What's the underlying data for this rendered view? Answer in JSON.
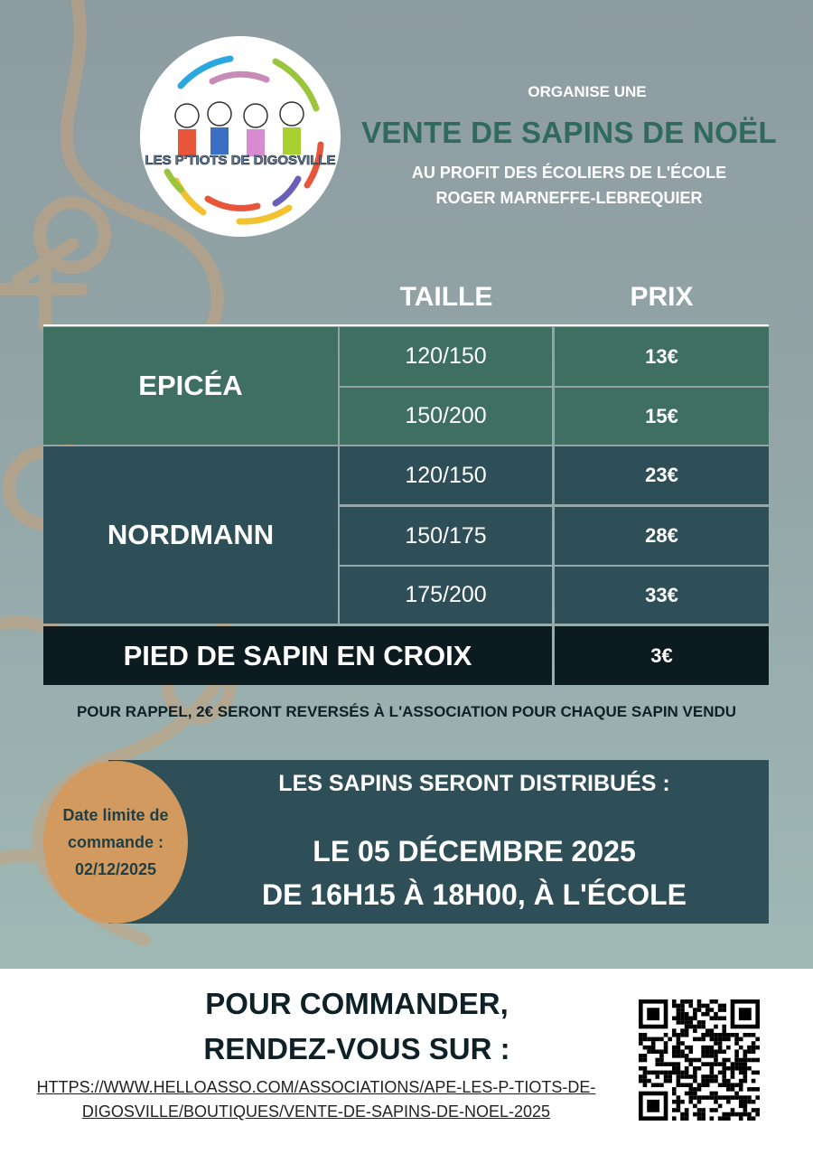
{
  "logo": {
    "text": "LES P'TIOTS DE DIGOSVILLE"
  },
  "header": {
    "organise": "ORGANISE UNE",
    "title": "VENTE DE SAPINS DE NOËL",
    "subtitle_line1": "AU PROFIT DES ÉCOLIERS DE L'ÉCOLE",
    "subtitle_line2": "ROGER MARNEFFE-LEBREQUIER"
  },
  "table": {
    "headers": {
      "size": "TAILLE",
      "price": "PRIX"
    },
    "groups": [
      {
        "name": "EPICÉA",
        "rows": [
          {
            "size": "120/150",
            "price": "13€"
          },
          {
            "size": "150/200",
            "price": "15€"
          }
        ]
      },
      {
        "name": "NORDMANN",
        "rows": [
          {
            "size": "120/150",
            "price": "23€"
          },
          {
            "size": "150/175",
            "price": "28€"
          },
          {
            "size": "175/200",
            "price": "33€"
          }
        ]
      }
    ],
    "extra": {
      "name": "PIED DE SAPIN EN CROIX",
      "price": "3€"
    }
  },
  "reminder": "POUR RAPPEL, 2€ SERONT REVERSÉS À L'ASSOCIATION POUR CHAQUE SAPIN VENDU",
  "deadline": {
    "line1": "Date limite de",
    "line2": "commande :",
    "date": "02/12/2025"
  },
  "distribution": {
    "title": "LES SAPINS SERONT DISTRIBUÉS :",
    "date": "LE 05 DÉCEMBRE 2025",
    "time": "DE 16H15 À 18H00, À L'ÉCOLE"
  },
  "order": {
    "line1": "POUR COMMANDER,",
    "line2": "RENDEZ-VOUS SUR :",
    "url_line1": "HTTPS://WWW.HELLOASSO.COM/ASSOCIATIONS/APE-LES-P-TIOTS-DE-",
    "url_line2": "DIGOSVILLE/BOUTIQUES/VENTE-DE-SAPINS-DE-NOEL-2025"
  },
  "colors": {
    "epicea": "#3e6f60",
    "nordmann": "#2e4f58",
    "pied": "#0c1b1f",
    "title": "#2f6a5c",
    "deadline": "#d39a5f"
  }
}
